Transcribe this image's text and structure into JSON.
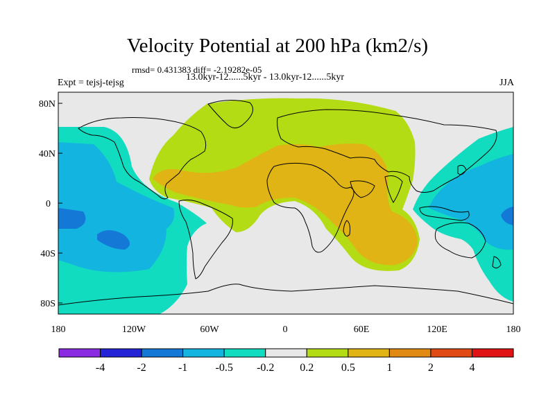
{
  "title": "Velocity Potential at 200 hPa (km2/s)",
  "stats_line": "rmsd= 0.431383 diff= -2.19282e-05",
  "experiment": "Expt = tejsj-tejsg",
  "period": "13.0kyr-12......5kyr - 13.0kyr-12......5kyr",
  "season": "JJA",
  "lat_labels": [
    "80N",
    "40N",
    "0",
    "40S",
    "80S"
  ],
  "lon_labels": [
    "180",
    "120W",
    "60W",
    "0",
    "60E",
    "120E",
    "180"
  ],
  "colorbar": {
    "colors": [
      "#8a2be2",
      "#2424d6",
      "#1478d6",
      "#14b4e0",
      "#12dcc0",
      "#e8e8e8",
      "#b4dc14",
      "#e0b414",
      "#e08a14",
      "#e04a14",
      "#e01414"
    ],
    "labels": [
      "-4",
      "-2",
      "-1",
      "-0.5",
      "-0.2",
      "0.2",
      "0.5",
      "1",
      "2",
      "4"
    ]
  }
}
